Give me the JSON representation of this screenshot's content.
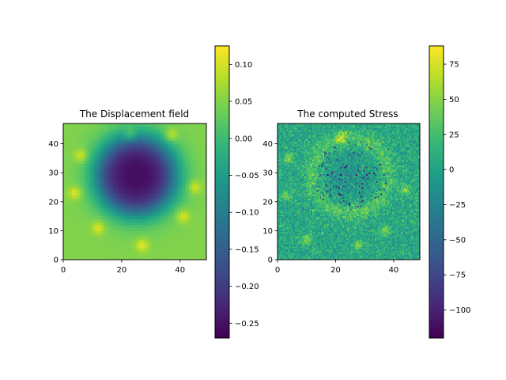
{
  "figure": {
    "background": "#ffffff"
  },
  "chart_data": [
    {
      "type": "heatmap",
      "title": "The Displacement field",
      "xlabel": "",
      "ylabel": "",
      "colormap": "viridis",
      "grid": false,
      "x_range": [
        0,
        49
      ],
      "y_range": [
        0,
        47
      ],
      "x_ticks": [
        0,
        20,
        40
      ],
      "y_ticks": [
        0,
        10,
        20,
        30,
        40
      ],
      "z_range": [
        -0.27,
        0.125
      ],
      "colorbar_ticks": [
        0.1,
        0.05,
        0.0,
        -0.05,
        -0.1,
        -0.15,
        -0.2,
        -0.25
      ],
      "colorbar_tick_labels": [
        "0.10",
        "0.05",
        "0.00",
        "−0.05",
        "−0.10",
        "−0.15",
        "−0.20",
        "−0.25"
      ],
      "pattern": {
        "background": 0.05,
        "depression": {
          "center": [
            25,
            29
          ],
          "radius": 13,
          "min": -0.26
        },
        "hotspots": [
          [
            6,
            36
          ],
          [
            23,
            43
          ],
          [
            37,
            43
          ],
          [
            45,
            25
          ],
          [
            27,
            5
          ],
          [
            4,
            23
          ],
          [
            41,
            15
          ],
          [
            12,
            11
          ]
        ]
      }
    },
    {
      "type": "heatmap",
      "title": "The computed Stress",
      "xlabel": "",
      "ylabel": "",
      "colormap": "viridis",
      "grid": false,
      "x_range": [
        0,
        49
      ],
      "y_range": [
        0,
        47
      ],
      "x_ticks": [
        0,
        20,
        40
      ],
      "y_ticks": [
        0,
        10,
        20,
        30,
        40
      ],
      "z_range": [
        -120,
        88
      ],
      "colorbar_ticks": [
        75,
        50,
        25,
        0,
        -25,
        -50,
        -75,
        -100
      ],
      "colorbar_tick_labels": [
        "75",
        "50",
        "25",
        "0",
        "−25",
        "−50",
        "−75",
        "−100"
      ],
      "pattern": {
        "background": 5,
        "noise": 14,
        "ring": {
          "center": [
            25,
            29
          ],
          "radius": 13,
          "value": 25
        },
        "interior": -18,
        "hotspots": [
          [
            4,
            35
          ],
          [
            22,
            42
          ],
          [
            44,
            24
          ],
          [
            10,
            7
          ],
          [
            37,
            10
          ],
          [
            28,
            5
          ],
          [
            3,
            22
          ]
        ]
      }
    }
  ]
}
